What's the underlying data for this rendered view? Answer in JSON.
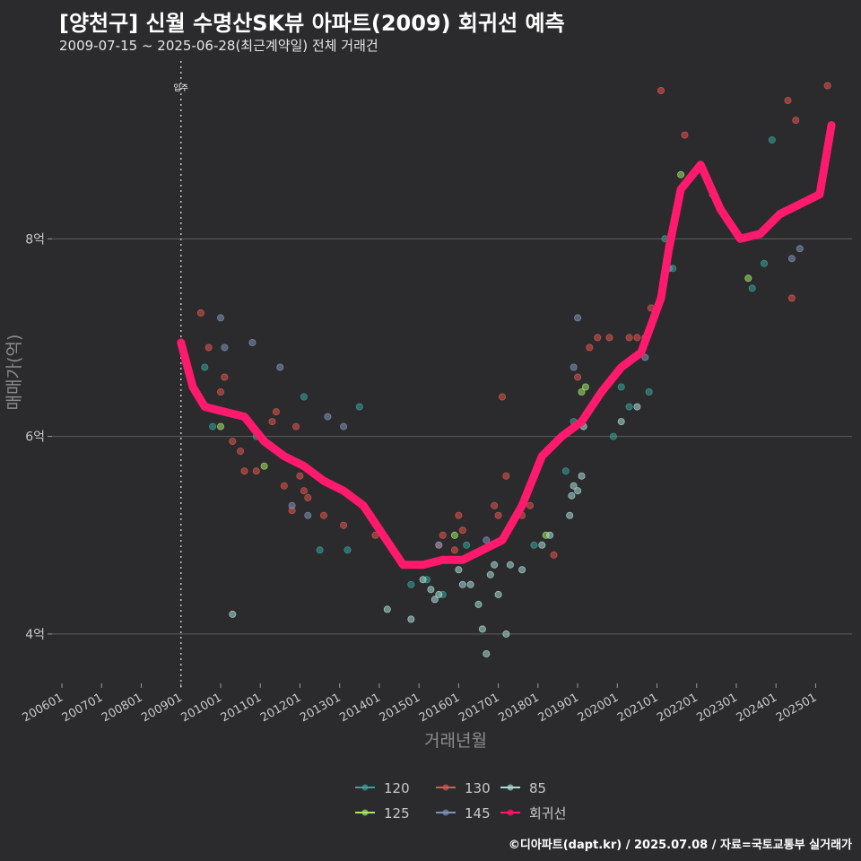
{
  "chart_data": {
    "type": "scatter",
    "title": "[양천구] 신월 수명산SK뷰 아파트(2009) 회귀선 예측",
    "subtitle": "2009-07-15 ~ 2025-06-28(최근계약일) 전체 거래건",
    "xlabel": "거래년월",
    "ylabel": "매매가(억)",
    "ylim": [
      3.5,
      9.8
    ],
    "xlim": [
      "2005-10",
      "2025-12"
    ],
    "y_ticks": [
      {
        "value": 4,
        "label": "4억"
      },
      {
        "value": 6,
        "label": "6억"
      },
      {
        "value": 8,
        "label": "8억"
      }
    ],
    "x_ticks": [
      "200601",
      "200701",
      "200801",
      "200901",
      "201001",
      "201101",
      "201201",
      "201301",
      "201401",
      "201501",
      "201601",
      "201701",
      "201801",
      "201901",
      "202001",
      "202101",
      "202201",
      "202301",
      "202401",
      "202501"
    ],
    "annotation": {
      "label": "입주",
      "x": 2009.0
    },
    "colors": {
      "background": "#2b2b2d",
      "grid": "#5e5e5e",
      "regression": "#ff1a6e",
      "s120": "#3aa39a",
      "s125": "#a6e66a",
      "s130": "#e0564f",
      "s145": "#7f93b8",
      "s85": "#a9dcd6"
    },
    "legend": [
      {
        "name": "120",
        "color": "#3aa39a"
      },
      {
        "name": "130",
        "color": "#e0564f"
      },
      {
        "name": "85",
        "color": "#a9dcd6"
      },
      {
        "name": "125",
        "color": "#a6e66a"
      },
      {
        "name": "145",
        "color": "#7f93b8"
      },
      {
        "name": "회귀선",
        "color": "#ff1a6e"
      }
    ],
    "series": [
      {
        "name": "120",
        "color": "#3aa39a",
        "points": [
          [
            2009.6,
            6.7
          ],
          [
            2009.8,
            6.1
          ],
          [
            2010.9,
            6.0
          ],
          [
            2012.1,
            6.4
          ],
          [
            2012.5,
            4.85
          ],
          [
            2013.2,
            4.85
          ],
          [
            2013.5,
            6.3
          ],
          [
            2014.8,
            4.5
          ],
          [
            2015.2,
            4.55
          ],
          [
            2015.6,
            4.4
          ],
          [
            2016.2,
            4.9
          ],
          [
            2017.9,
            4.9
          ],
          [
            2018.7,
            5.65
          ],
          [
            2018.9,
            6.15
          ],
          [
            2019.9,
            6.0
          ],
          [
            2020.1,
            6.5
          ],
          [
            2020.3,
            6.3
          ],
          [
            2020.8,
            6.45
          ],
          [
            2021.2,
            8.0
          ],
          [
            2021.4,
            7.7
          ],
          [
            2022.4,
            8.45
          ],
          [
            2023.4,
            7.5
          ],
          [
            2023.7,
            7.75
          ],
          [
            2023.9,
            9.0
          ]
        ]
      },
      {
        "name": "125",
        "color": "#a6e66a",
        "points": [
          [
            2010.0,
            6.1
          ],
          [
            2011.1,
            5.7
          ],
          [
            2015.9,
            5.0
          ],
          [
            2018.2,
            5.0
          ],
          [
            2019.1,
            6.45
          ],
          [
            2019.2,
            6.5
          ],
          [
            2021.6,
            8.65
          ],
          [
            2023.3,
            7.6
          ]
        ]
      },
      {
        "name": "130",
        "color": "#e0564f",
        "points": [
          [
            2009.5,
            7.25
          ],
          [
            2009.7,
            6.9
          ],
          [
            2010.0,
            6.45
          ],
          [
            2010.1,
            6.6
          ],
          [
            2010.3,
            5.95
          ],
          [
            2010.5,
            5.85
          ],
          [
            2010.6,
            5.65
          ],
          [
            2010.9,
            5.65
          ],
          [
            2011.3,
            6.15
          ],
          [
            2011.4,
            6.25
          ],
          [
            2011.6,
            5.5
          ],
          [
            2011.8,
            5.25
          ],
          [
            2011.9,
            6.1
          ],
          [
            2012.0,
            5.6
          ],
          [
            2012.1,
            5.45
          ],
          [
            2012.2,
            5.38
          ],
          [
            2012.6,
            5.2
          ],
          [
            2013.1,
            5.1
          ],
          [
            2013.9,
            5.0
          ],
          [
            2015.5,
            4.9
          ],
          [
            2015.6,
            5.0
          ],
          [
            2015.9,
            4.85
          ],
          [
            2016.0,
            5.2
          ],
          [
            2016.1,
            5.05
          ],
          [
            2016.9,
            5.3
          ],
          [
            2017.0,
            5.2
          ],
          [
            2017.1,
            6.4
          ],
          [
            2017.2,
            5.6
          ],
          [
            2017.6,
            5.2
          ],
          [
            2017.8,
            5.3
          ],
          [
            2018.4,
            4.8
          ],
          [
            2018.6,
            6.0
          ],
          [
            2019.0,
            6.6
          ],
          [
            2019.3,
            6.9
          ],
          [
            2019.5,
            7.0
          ],
          [
            2019.8,
            7.0
          ],
          [
            2020.3,
            7.0
          ],
          [
            2020.5,
            7.0
          ],
          [
            2020.7,
            7.0
          ],
          [
            2020.85,
            7.3
          ],
          [
            2021.1,
            9.5
          ],
          [
            2021.7,
            9.05
          ],
          [
            2024.3,
            9.4
          ],
          [
            2024.5,
            9.2
          ],
          [
            2024.4,
            7.4
          ],
          [
            2025.3,
            9.55
          ]
        ]
      },
      {
        "name": "145",
        "color": "#7f93b8",
        "points": [
          [
            2010.0,
            7.2
          ],
          [
            2010.1,
            6.9
          ],
          [
            2010.8,
            6.95
          ],
          [
            2011.5,
            6.7
          ],
          [
            2011.8,
            5.3
          ],
          [
            2012.2,
            5.2
          ],
          [
            2012.7,
            6.2
          ],
          [
            2013.1,
            6.1
          ],
          [
            2015.5,
            4.9
          ],
          [
            2016.7,
            4.95
          ],
          [
            2018.9,
            6.7
          ],
          [
            2019.0,
            7.2
          ],
          [
            2020.7,
            6.8
          ],
          [
            2021.3,
            7.7
          ],
          [
            2024.4,
            7.8
          ],
          [
            2024.6,
            7.9
          ]
        ]
      },
      {
        "name": "85",
        "color": "#a9dcd6",
        "points": [
          [
            2010.3,
            4.2
          ],
          [
            2014.2,
            4.25
          ],
          [
            2014.8,
            4.15
          ],
          [
            2015.1,
            4.55
          ],
          [
            2015.3,
            4.45
          ],
          [
            2015.4,
            4.35
          ],
          [
            2015.5,
            4.4
          ],
          [
            2016.0,
            4.65
          ],
          [
            2016.1,
            4.5
          ],
          [
            2016.3,
            4.5
          ],
          [
            2016.5,
            4.3
          ],
          [
            2016.6,
            4.05
          ],
          [
            2016.7,
            3.8
          ],
          [
            2016.8,
            4.6
          ],
          [
            2016.9,
            4.7
          ],
          [
            2017.0,
            4.4
          ],
          [
            2017.2,
            4.0
          ],
          [
            2017.3,
            4.7
          ],
          [
            2017.6,
            4.65
          ],
          [
            2018.1,
            4.9
          ],
          [
            2018.3,
            5.0
          ],
          [
            2018.8,
            5.2
          ],
          [
            2018.85,
            5.4
          ],
          [
            2018.9,
            5.5
          ],
          [
            2019.0,
            5.45
          ],
          [
            2019.1,
            5.6
          ],
          [
            2019.15,
            6.1
          ],
          [
            2020.1,
            6.15
          ],
          [
            2020.5,
            6.3
          ]
        ]
      }
    ],
    "regression": [
      [
        2009.0,
        6.95
      ],
      [
        2009.3,
        6.5
      ],
      [
        2009.6,
        6.3
      ],
      [
        2010.1,
        6.25
      ],
      [
        2010.6,
        6.2
      ],
      [
        2011.1,
        5.95
      ],
      [
        2011.6,
        5.8
      ],
      [
        2012.1,
        5.7
      ],
      [
        2012.6,
        5.55
      ],
      [
        2013.1,
        5.45
      ],
      [
        2013.6,
        5.3
      ],
      [
        2014.1,
        5.0
      ],
      [
        2014.6,
        4.7
      ],
      [
        2015.1,
        4.7
      ],
      [
        2015.6,
        4.75
      ],
      [
        2016.1,
        4.75
      ],
      [
        2016.6,
        4.85
      ],
      [
        2017.1,
        4.95
      ],
      [
        2017.6,
        5.3
      ],
      [
        2018.1,
        5.8
      ],
      [
        2018.6,
        6.0
      ],
      [
        2019.1,
        6.15
      ],
      [
        2019.6,
        6.45
      ],
      [
        2020.1,
        6.7
      ],
      [
        2020.6,
        6.85
      ],
      [
        2021.1,
        7.4
      ],
      [
        2021.3,
        7.9
      ],
      [
        2021.6,
        8.5
      ],
      [
        2022.1,
        8.75
      ],
      [
        2022.6,
        8.3
      ],
      [
        2023.1,
        8.0
      ],
      [
        2023.6,
        8.05
      ],
      [
        2024.1,
        8.25
      ],
      [
        2024.6,
        8.35
      ],
      [
        2025.1,
        8.45
      ],
      [
        2025.4,
        9.15
      ]
    ]
  },
  "footer": {
    "credit": "©디아파트(dapt.kr) / 2025.07.08 / 자료=국토교통부 실거래가"
  }
}
